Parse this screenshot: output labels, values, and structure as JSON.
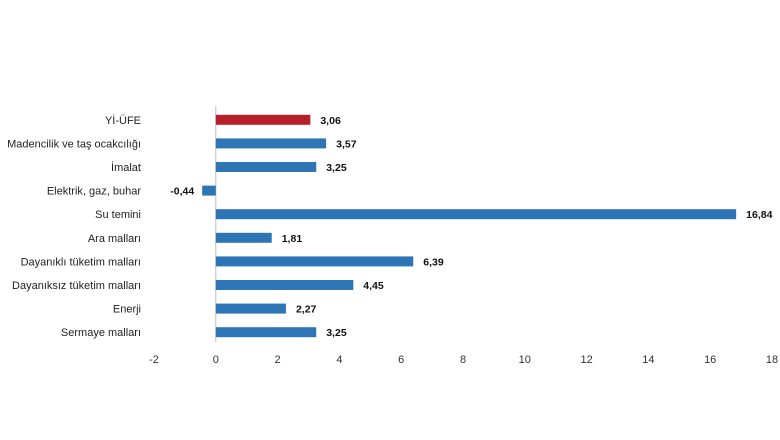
{
  "chart_data": {
    "type": "bar",
    "orientation": "horizontal",
    "categories": [
      "Yİ-ÜFE",
      "Madencilik ve taş ocakcılığı",
      "İmalat",
      "Elektrik, gaz, buhar",
      "Su temini",
      "Ara malları",
      "Dayanıklı tüketim malları",
      "Dayanıksız tüketim malları",
      "Enerji",
      "Sermaye malları"
    ],
    "values": [
      3.06,
      3.57,
      3.25,
      -0.44,
      16.84,
      1.81,
      6.39,
      4.45,
      2.27,
      3.25
    ],
    "value_labels": [
      "3,06",
      "3,57",
      "3,25",
      "-0,44",
      "16,84",
      "1,81",
      "6,39",
      "4,45",
      "2,27",
      "3,25"
    ],
    "xlim": [
      -2,
      18
    ],
    "xticks": [
      -2,
      0,
      2,
      4,
      6,
      8,
      10,
      12,
      14,
      16,
      18
    ],
    "title": "",
    "xlabel": "",
    "ylabel": "",
    "grid": false,
    "legend": "none",
    "colors": {
      "highlight": "#B5202A",
      "default": "#2E75B6",
      "axis": "#BFBFBF"
    },
    "highlight_index": 0
  }
}
